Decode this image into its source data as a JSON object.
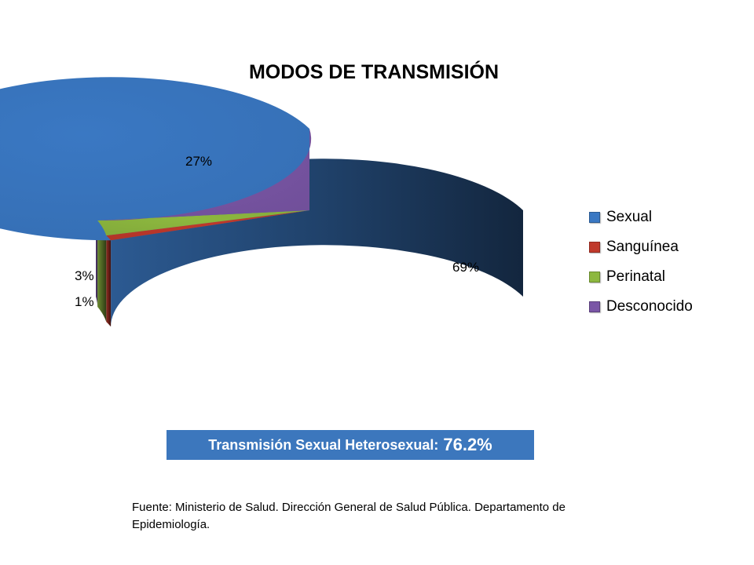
{
  "chart_data": {
    "type": "pie",
    "title": "MODOS DE TRANSMISIÓN",
    "categories": [
      "Sexual",
      "Sanguínea",
      "Perinatal",
      "Desconocido"
    ],
    "values": [
      69,
      1,
      3,
      27
    ],
    "data_labels": [
      "69%",
      "1%",
      "3%",
      "27%"
    ],
    "colors": [
      "#3a78c3",
      "#c0392b",
      "#8db83f",
      "#7a56a6"
    ],
    "legend_position": "right",
    "style": "3d"
  },
  "callout": {
    "label": "Transmisión Sexual Heterosexual:",
    "value": "76.2%"
  },
  "source_note": "Fuente: Ministerio de Salud. Dirección General de Salud Pública. Departamento de Epidemiología."
}
